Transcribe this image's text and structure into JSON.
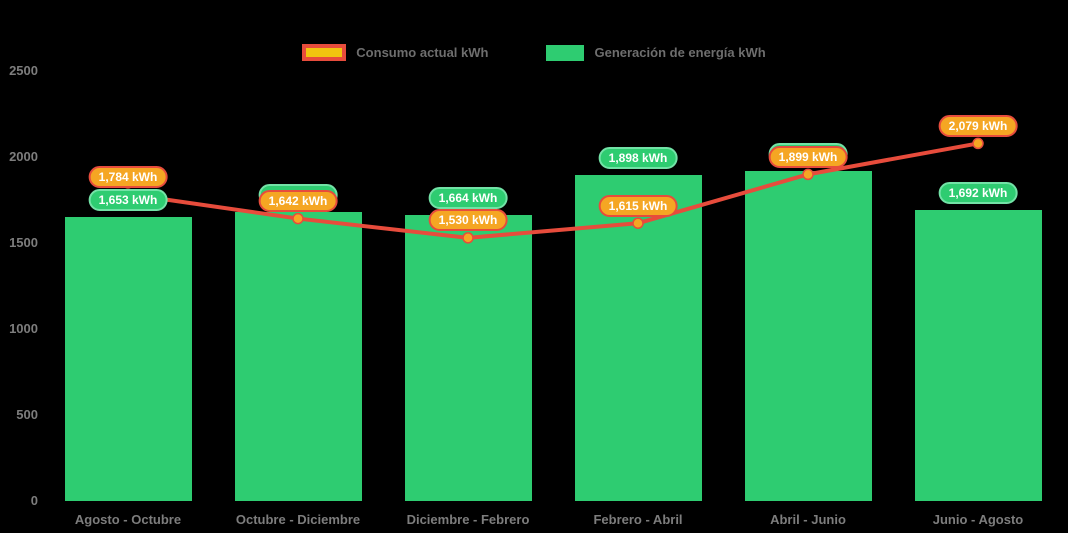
{
  "chart_data": {
    "type": "bar",
    "title": "",
    "categories": [
      "Agosto - Octubre",
      "Octubre - Diciembre",
      "Diciembre - Febrero",
      "Febrero - Abril",
      "Abril - Junio",
      "Junio - Agosto"
    ],
    "series": [
      {
        "name": "Generación de energía kWh",
        "type": "bar",
        "color": "#2ecc71",
        "values": [
          1653,
          1680,
          1664,
          1898,
          1920,
          1692
        ],
        "labels": [
          "1,653 kWh",
          "1,680 kWh",
          "1,664 kWh",
          "1,898 kWh",
          "1,920 kWh",
          "1,692 kWh"
        ]
      },
      {
        "name": "Consumo actual kWh",
        "type": "line",
        "color": "#e74c3c",
        "marker_color": "#f5a623",
        "values": [
          1784,
          1642,
          1530,
          1615,
          1899,
          2079
        ],
        "labels": [
          "1,784 kWh",
          "1,642 kWh",
          "1,530 kWh",
          "1,615 kWh",
          "1,899 kWh",
          "2,079 kWh"
        ]
      }
    ],
    "ylim": [
      0,
      2500
    ],
    "yticks": [
      "0",
      "500",
      "1000",
      "1500",
      "2000",
      "2500"
    ],
    "grid": false,
    "legend_position": "top",
    "colors": {
      "background": "#000000",
      "bar": "#2ecc71",
      "line": "#e74c3c",
      "marker_fill": "#f5a623",
      "marker_stroke": "#e74c3c",
      "pill_orange_fill": "#f5a623",
      "pill_orange_border": "#e74c3c",
      "pill_green_fill": "#2ecc71",
      "pill_green_border": "#72e2a6",
      "legend_swatch_orange_fill": "#f1c40f",
      "axis_text": "#7d7d7d"
    }
  }
}
